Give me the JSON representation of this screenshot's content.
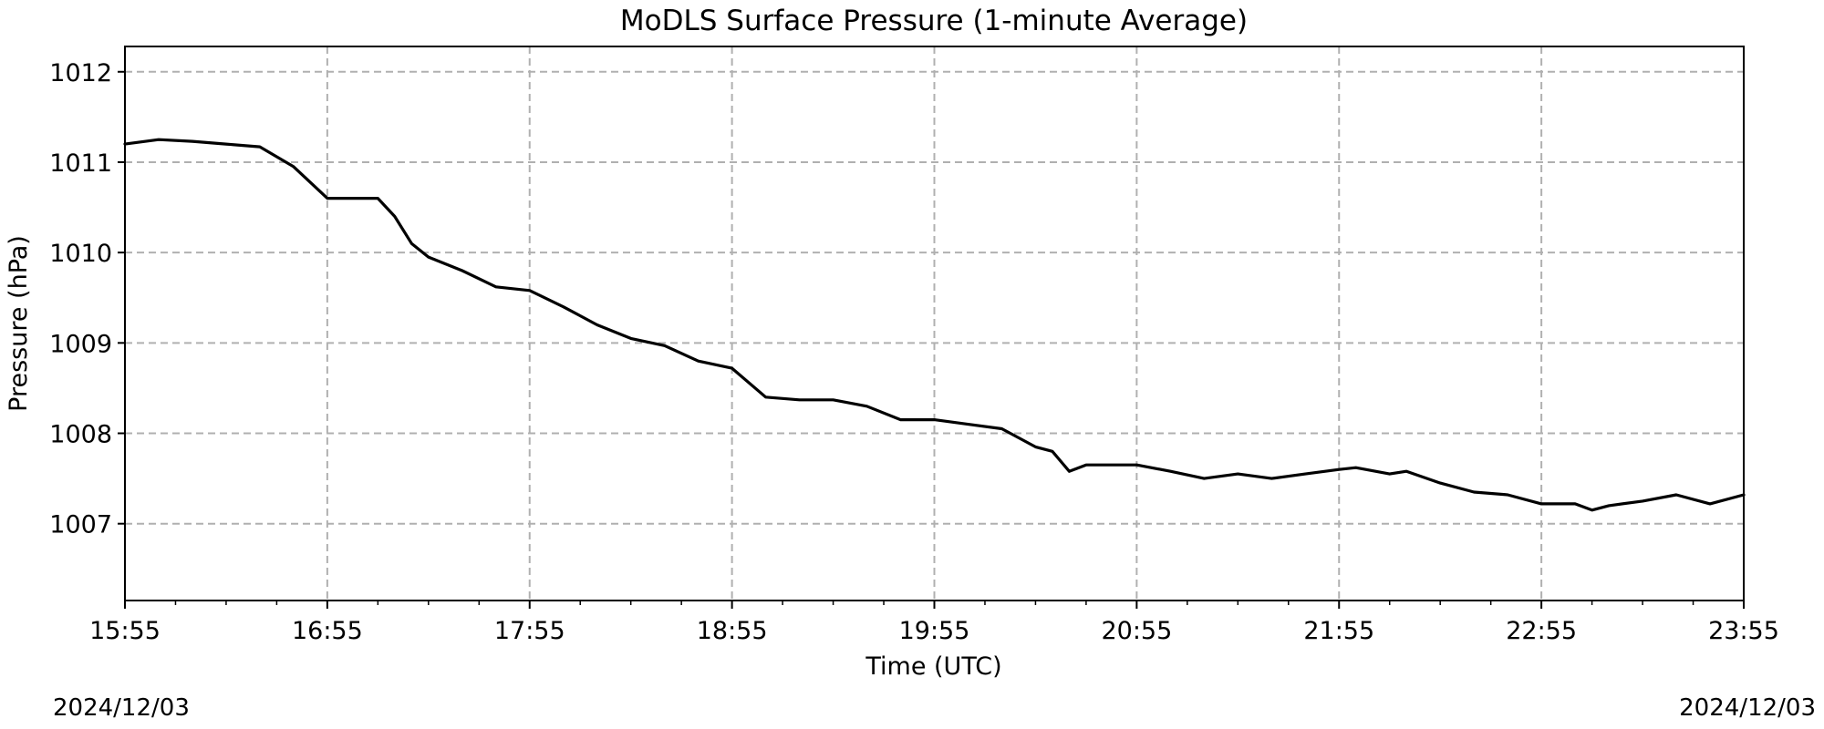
{
  "chart_data": {
    "type": "line",
    "title": "MoDLS Surface Pressure (1-minute Average)",
    "xlabel": "Time (UTC)",
    "ylabel": "Pressure (hPa)",
    "x_ticks": [
      "15:55",
      "16:55",
      "17:55",
      "18:55",
      "19:55",
      "20:55",
      "21:55",
      "22:55",
      "23:55"
    ],
    "y_ticks": [
      1007,
      1008,
      1009,
      1010,
      1011,
      1012
    ],
    "xlim": [
      "15:55",
      "23:55"
    ],
    "ylim": [
      1006.15,
      1012.28
    ],
    "grid": true,
    "grid_style": "dashed",
    "line_color": "#000000",
    "series": [
      {
        "x": [
          "15:55",
          "16:05",
          "16:15",
          "16:25",
          "16:35",
          "16:45",
          "16:55",
          "17:05",
          "17:10",
          "17:15",
          "17:20",
          "17:25",
          "17:35",
          "17:45",
          "17:55",
          "18:05",
          "18:15",
          "18:25",
          "18:35",
          "18:45",
          "18:55",
          "19:05",
          "19:15",
          "19:25",
          "19:35",
          "19:45",
          "19:55",
          "20:05",
          "20:15",
          "20:25",
          "20:30",
          "20:35",
          "20:40",
          "20:55",
          "21:05",
          "21:15",
          "21:25",
          "21:35",
          "21:45",
          "21:55",
          "22:00",
          "22:10",
          "22:15",
          "22:25",
          "22:35",
          "22:45",
          "22:55",
          "23:05",
          "23:10",
          "23:15",
          "23:25",
          "23:35",
          "23:45",
          "23:55"
        ],
        "y": [
          1011.2,
          1011.25,
          1011.23,
          1011.2,
          1011.17,
          1010.95,
          1010.6,
          1010.6,
          1010.6,
          1010.4,
          1010.1,
          1009.95,
          1009.8,
          1009.62,
          1009.58,
          1009.4,
          1009.2,
          1009.05,
          1008.97,
          1008.8,
          1008.72,
          1008.4,
          1008.37,
          1008.37,
          1008.3,
          1008.15,
          1008.15,
          1008.1,
          1008.05,
          1007.85,
          1007.8,
          1007.58,
          1007.65,
          1007.65,
          1007.58,
          1007.5,
          1007.55,
          1007.5,
          1007.55,
          1007.6,
          1007.62,
          1007.55,
          1007.58,
          1007.45,
          1007.35,
          1007.32,
          1007.22,
          1007.22,
          1007.15,
          1007.2,
          1007.25,
          1007.32,
          1007.22,
          1007.32
        ]
      }
    ]
  },
  "footer": {
    "date_left": "2024/12/03",
    "date_right": "2024/12/03"
  }
}
